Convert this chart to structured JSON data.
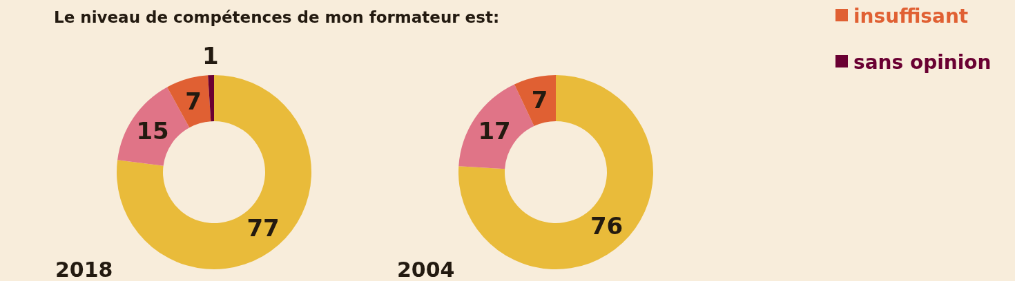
{
  "chart_data": [
    {
      "type": "donut",
      "title": "Le niveau de compétences de mon formateur est:",
      "subtitle": "2018",
      "categories": [
        null,
        null,
        "insuffisant",
        "sans opinion"
      ],
      "values": [
        77,
        15,
        7,
        1
      ],
      "colors": [
        "#e9bb3a",
        "#e07487",
        "#e06033",
        "#6a0032"
      ],
      "data_labels": true,
      "legend": "top right"
    },
    {
      "type": "donut",
      "subtitle": "2004",
      "categories": [
        null,
        null,
        null
      ],
      "values": [
        76,
        17,
        7
      ],
      "colors": [
        "#e9bb3a",
        "#e07487",
        "#e06033"
      ],
      "data_labels": true
    }
  ]
}
